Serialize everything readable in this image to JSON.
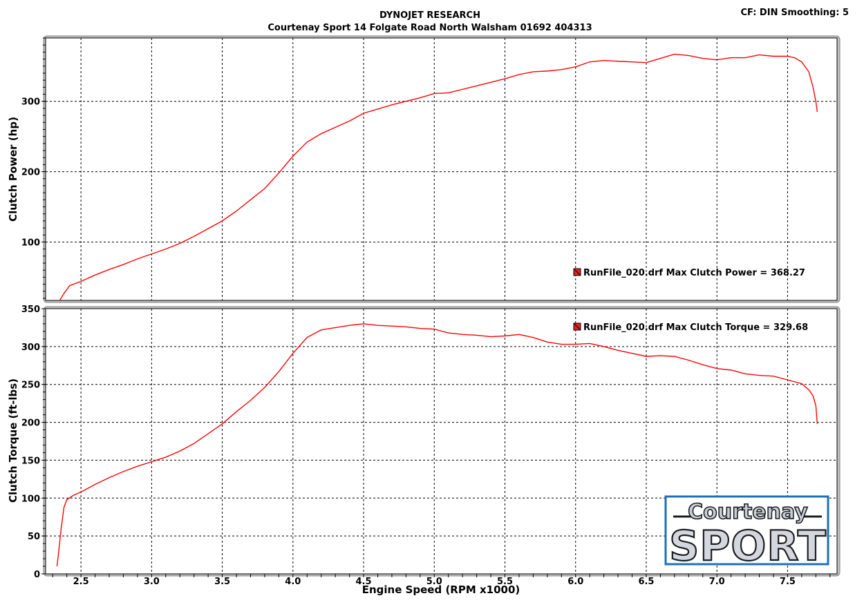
{
  "header": {
    "title": "DYNOJET RESEARCH",
    "subtitle": "Courtenay Sport 14 Folgate Road North Walsham 01692 404313",
    "settings": "CF: DIN  Smoothing: 5"
  },
  "logo": {
    "line1": "Courtenay",
    "line2": "SPORT",
    "border_color": "#1f6fb4"
  },
  "colors": {
    "series": "#ff0000",
    "frame_bg": "#c0c0c0",
    "plot_bg": "#ffffff",
    "grid": "#000000"
  },
  "chart_data": [
    {
      "type": "line",
      "id": "power",
      "ylabel": "Clutch Power (hp)",
      "xlabel": "Engine Speed (RPM x1000)",
      "xlim": [
        2.25,
        7.85
      ],
      "ylim": [
        17,
        390
      ],
      "yticks": [
        100,
        200,
        300
      ],
      "xticks": [
        2.5,
        3.0,
        3.5,
        4.0,
        4.5,
        5.0,
        5.5,
        6.0,
        6.5,
        7.0,
        7.5
      ],
      "grid": true,
      "legend": {
        "label": "RunFile_020.drf Max Clutch Power = 368.27",
        "placement": "lower-right"
      },
      "series": [
        {
          "x": [
            2.35,
            2.38,
            2.42,
            2.5,
            2.6,
            2.7,
            2.8,
            2.9,
            3.0,
            3.1,
            3.2,
            3.3,
            3.4,
            3.5,
            3.6,
            3.7,
            3.8,
            3.9,
            4.0,
            4.1,
            4.2,
            4.3,
            4.4,
            4.5,
            4.6,
            4.7,
            4.8,
            4.9,
            5.0,
            5.1,
            5.2,
            5.3,
            5.4,
            5.5,
            5.6,
            5.7,
            5.8,
            5.9,
            6.0,
            6.1,
            6.2,
            6.3,
            6.4,
            6.5,
            6.6,
            6.7,
            6.8,
            6.9,
            7.0,
            7.1,
            7.2,
            7.3,
            7.4,
            7.5,
            7.55,
            7.6,
            7.65,
            7.68,
            7.7,
            7.71
          ],
          "y": [
            17,
            27,
            38,
            44,
            53,
            61,
            68,
            76,
            83,
            90,
            98,
            108,
            119,
            130,
            144,
            160,
            176,
            198,
            222,
            242,
            254,
            263,
            272,
            283,
            289,
            295,
            300,
            305,
            311,
            312,
            317,
            322,
            327,
            332,
            338,
            342,
            343,
            345,
            349,
            356,
            358,
            357,
            356,
            355,
            361,
            367,
            365,
            361,
            359,
            362,
            362,
            366,
            364,
            364,
            362,
            356,
            342,
            320,
            300,
            285
          ]
        }
      ]
    },
    {
      "type": "line",
      "id": "torque",
      "ylabel": "Clutch Torque (ft-lbs)",
      "xlabel": "Engine Speed (RPM x1000)",
      "xlim": [
        2.25,
        7.85
      ],
      "ylim": [
        0,
        350
      ],
      "yticks": [
        0,
        50,
        100,
        150,
        200,
        250,
        300,
        350
      ],
      "xticks": [
        2.5,
        3.0,
        3.5,
        4.0,
        4.5,
        5.0,
        5.5,
        6.0,
        6.5,
        7.0,
        7.5
      ],
      "grid": true,
      "legend": {
        "label": "RunFile_020.drf Max Clutch Torque = 329.68",
        "placement": "top-right"
      },
      "series": [
        {
          "x": [
            2.33,
            2.34,
            2.36,
            2.38,
            2.4,
            2.45,
            2.5,
            2.6,
            2.7,
            2.8,
            2.9,
            3.0,
            3.1,
            3.2,
            3.3,
            3.4,
            3.5,
            3.6,
            3.7,
            3.8,
            3.9,
            4.0,
            4.1,
            4.2,
            4.3,
            4.4,
            4.5,
            4.55,
            4.6,
            4.7,
            4.8,
            4.9,
            5.0,
            5.1,
            5.2,
            5.3,
            5.4,
            5.5,
            5.6,
            5.7,
            5.8,
            5.9,
            6.0,
            6.1,
            6.2,
            6.3,
            6.4,
            6.5,
            6.6,
            6.7,
            6.8,
            6.9,
            7.0,
            7.1,
            7.2,
            7.3,
            7.4,
            7.5,
            7.6,
            7.65,
            7.68,
            7.7,
            7.71
          ],
          "y": [
            10,
            25,
            60,
            88,
            98,
            104,
            108,
            118,
            127,
            135,
            142,
            148,
            154,
            162,
            172,
            185,
            198,
            214,
            229,
            246,
            267,
            291,
            312,
            322,
            325,
            328,
            330,
            329,
            328,
            327,
            326,
            324,
            323,
            318,
            316,
            315,
            313,
            314,
            316,
            312,
            306,
            303,
            303,
            304,
            300,
            295,
            291,
            287,
            288,
            287,
            282,
            276,
            271,
            269,
            264,
            262,
            261,
            256,
            251,
            243,
            235,
            222,
            198
          ]
        }
      ]
    }
  ]
}
